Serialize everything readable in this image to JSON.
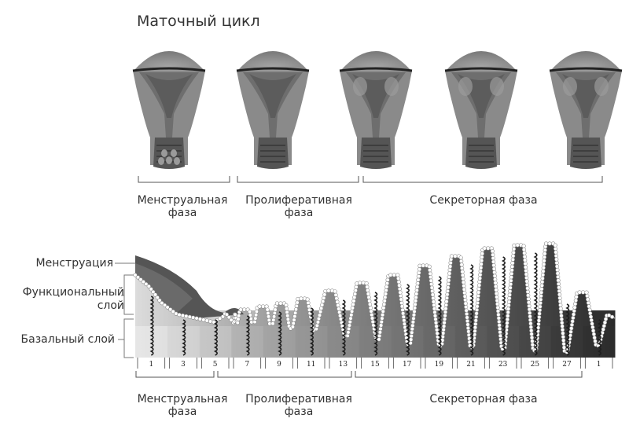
{
  "title": "Маточный цикл",
  "top_phases": [
    {
      "label_line1": "Менструальная",
      "label_line2": "фаза"
    },
    {
      "label_line1": "Пролиферативная",
      "label_line2": "фаза"
    },
    {
      "label_line1": "Секреторная фаза",
      "label_line2": ""
    }
  ],
  "layer_labels": {
    "menstruation": "Менструация",
    "functional_line1": "Функциональный",
    "functional_line2": "слой",
    "basal": "Базальный слой"
  },
  "days": [
    "1",
    "3",
    "5",
    "7",
    "9",
    "11",
    "13",
    "15",
    "17",
    "19",
    "21",
    "23",
    "25",
    "27",
    "1"
  ],
  "bottom_phases": [
    {
      "label_line1": "Менструальная",
      "label_line2": "фаза"
    },
    {
      "label_line1": "Пролиферативная",
      "label_line2": "фаза"
    },
    {
      "label_line1": "Секреторная фаза",
      "label_line2": ""
    }
  ]
}
